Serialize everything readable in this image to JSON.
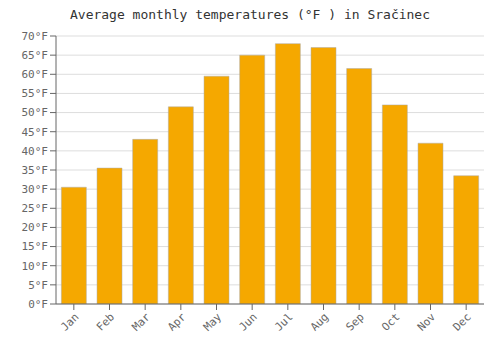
{
  "chart_data": {
    "type": "bar",
    "title": "Average monthly temperatures (°F ) in Sračinec",
    "categories": [
      "Jan",
      "Feb",
      "Mar",
      "Apr",
      "May",
      "Jun",
      "Jul",
      "Aug",
      "Sep",
      "Oct",
      "Nov",
      "Dec"
    ],
    "values": [
      30.5,
      35.5,
      43.0,
      51.5,
      59.5,
      65.0,
      68.0,
      67.0,
      61.5,
      52.0,
      42.0,
      33.5
    ],
    "color": "#F5A800",
    "ylim": [
      0,
      70
    ],
    "yticks": [
      {
        "value": 0,
        "label": "0°F"
      },
      {
        "value": 5,
        "label": "5°F"
      },
      {
        "value": 10,
        "label": "10°F"
      },
      {
        "value": 15,
        "label": "15°F"
      },
      {
        "value": 20,
        "label": "20°F"
      },
      {
        "value": 25,
        "label": "25°F"
      },
      {
        "value": 30,
        "label": "30°F"
      },
      {
        "value": 35,
        "label": "35°F"
      },
      {
        "value": 40,
        "label": "40°F"
      },
      {
        "value": 45,
        "label": "45°F"
      },
      {
        "value": 50,
        "label": "50°F"
      },
      {
        "value": 55,
        "label": "55°F"
      },
      {
        "value": 60,
        "label": "60°F"
      },
      {
        "value": 65,
        "label": "65°F"
      },
      {
        "value": 70,
        "label": "70°F"
      }
    ],
    "grid": true
  }
}
